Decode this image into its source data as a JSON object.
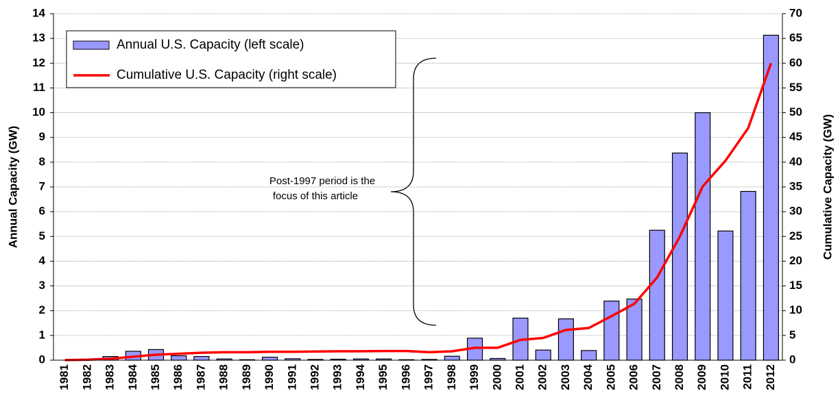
{
  "chart_data": {
    "type": "bar_line",
    "y_label": "Annual Capacity (GW)",
    "y2_label": "Cumulative Capacity (GW)",
    "categories": [
      "1981",
      "1982",
      "1983",
      "1984",
      "1985",
      "1986",
      "1987",
      "1988",
      "1989",
      "1990",
      "1991",
      "1992",
      "1993",
      "1994",
      "1995",
      "1996",
      "1997",
      "1998",
      "1999",
      "2000",
      "2001",
      "2002",
      "2003",
      "2004",
      "2005",
      "2006",
      "2007",
      "2008",
      "2009",
      "2010",
      "2011",
      "2012"
    ],
    "series": [
      {
        "name": "Annual U.S. Capacity (left scale)",
        "type": "bar",
        "color": "#9999ff",
        "values": [
          0,
          0.02,
          0.15,
          0.36,
          0.43,
          0.18,
          0.15,
          0.05,
          0.02,
          0.12,
          0.06,
          0.03,
          0.04,
          0.05,
          0.05,
          0.02,
          0.03,
          0.16,
          0.89,
          0.07,
          1.7,
          0.41,
          1.67,
          0.39,
          2.39,
          2.47,
          5.25,
          8.37,
          10.0,
          5.22,
          6.82,
          13.13
        ]
      },
      {
        "name": "Cumulative U.S. Capacity (right scale)",
        "type": "line",
        "color": "#ff0000",
        "axis": "y2",
        "values": [
          0.01,
          0.1,
          0.3,
          0.7,
          1.1,
          1.3,
          1.5,
          1.6,
          1.6,
          1.7,
          1.7,
          1.75,
          1.8,
          1.8,
          1.85,
          1.85,
          1.6,
          1.8,
          2.5,
          2.5,
          4.1,
          4.5,
          6.1,
          6.5,
          8.9,
          11.4,
          16.7,
          25.0,
          35.1,
          40.3,
          46.9,
          60.0
        ]
      }
    ],
    "ylim": [
      0,
      14
    ],
    "yticks": [
      0,
      1,
      2,
      3,
      4,
      5,
      6,
      7,
      8,
      9,
      10,
      11,
      12,
      13,
      14
    ],
    "y2lim": [
      0,
      70
    ],
    "y2ticks": [
      0,
      5,
      10,
      15,
      20,
      25,
      30,
      35,
      40,
      45,
      50,
      55,
      60,
      65,
      70
    ],
    "grid": true,
    "legend": "upper-left",
    "annotation": [
      "Post-1997 period is the",
      "focus of this article"
    ]
  }
}
